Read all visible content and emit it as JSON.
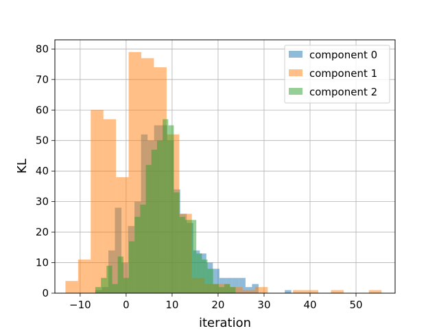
{
  "chart_data": {
    "type": "histogram",
    "xlabel": "iteration",
    "ylabel": "KL",
    "xlim": [
      -15.5,
      58.5
    ],
    "ylim": [
      0,
      83
    ],
    "xticks": [
      -10,
      0,
      10,
      20,
      30,
      40,
      50
    ],
    "yticks": [
      0,
      10,
      20,
      30,
      40,
      50,
      60,
      70,
      80
    ],
    "grid": true,
    "legend_position": "top-right",
    "series": [
      {
        "name": "component 0",
        "color": "#1f77b4",
        "opacity": 0.5,
        "bin_width": 1.42,
        "bins": [
          [
            -6.7,
            1
          ],
          [
            -5.28,
            2
          ],
          [
            -3.86,
            14
          ],
          [
            -2.44,
            28
          ],
          [
            -1.02,
            10
          ],
          [
            0.4,
            22
          ],
          [
            1.82,
            30
          ],
          [
            3.24,
            52
          ],
          [
            4.66,
            50
          ],
          [
            6.08,
            55
          ],
          [
            7.5,
            55
          ],
          [
            8.92,
            50
          ],
          [
            10.34,
            34
          ],
          [
            11.76,
            26
          ],
          [
            13.18,
            23
          ],
          [
            14.6,
            14
          ],
          [
            16.02,
            13
          ],
          [
            17.44,
            10
          ],
          [
            18.86,
            8
          ],
          [
            20.28,
            5
          ],
          [
            21.7,
            5
          ],
          [
            23.12,
            5
          ],
          [
            24.54,
            5
          ],
          [
            25.96,
            2
          ],
          [
            27.38,
            3
          ],
          [
            34.5,
            1
          ]
        ]
      },
      {
        "name": "component 1",
        "color": "#ff7f0e",
        "opacity": 0.5,
        "bin_width": 2.75,
        "bins": [
          [
            -13.2,
            4
          ],
          [
            -10.45,
            11
          ],
          [
            -7.7,
            60
          ],
          [
            -4.95,
            57
          ],
          [
            -2.2,
            38
          ],
          [
            0.55,
            79
          ],
          [
            3.3,
            77
          ],
          [
            6.05,
            74
          ],
          [
            8.8,
            52
          ],
          [
            11.55,
            26
          ],
          [
            14.3,
            5
          ],
          [
            17.05,
            3
          ],
          [
            19.8,
            3
          ],
          [
            22.55,
            2
          ],
          [
            25.3,
            1
          ],
          [
            28.05,
            2
          ],
          [
            36.3,
            1
          ],
          [
            39.05,
            1
          ],
          [
            44.55,
            1
          ],
          [
            52.8,
            1
          ]
        ]
      },
      {
        "name": "component 2",
        "color": "#2ca02c",
        "opacity": 0.5,
        "bin_width": 1.22,
        "bins": [
          [
            -6.7,
            2
          ],
          [
            -5.48,
            5
          ],
          [
            -4.26,
            9
          ],
          [
            -3.04,
            3
          ],
          [
            -1.82,
            12
          ],
          [
            -0.6,
            5
          ],
          [
            0.62,
            17
          ],
          [
            1.84,
            25
          ],
          [
            3.06,
            29
          ],
          [
            4.28,
            42
          ],
          [
            5.5,
            47
          ],
          [
            6.72,
            50
          ],
          [
            7.94,
            57
          ],
          [
            9.16,
            55
          ],
          [
            10.38,
            33
          ],
          [
            11.6,
            25
          ],
          [
            12.82,
            24
          ],
          [
            14.04,
            24
          ],
          [
            15.26,
            13
          ],
          [
            16.48,
            11
          ],
          [
            17.7,
            8
          ],
          [
            18.92,
            3
          ],
          [
            20.14,
            2
          ],
          [
            21.36,
            3
          ],
          [
            22.58,
            2
          ]
        ]
      }
    ]
  }
}
